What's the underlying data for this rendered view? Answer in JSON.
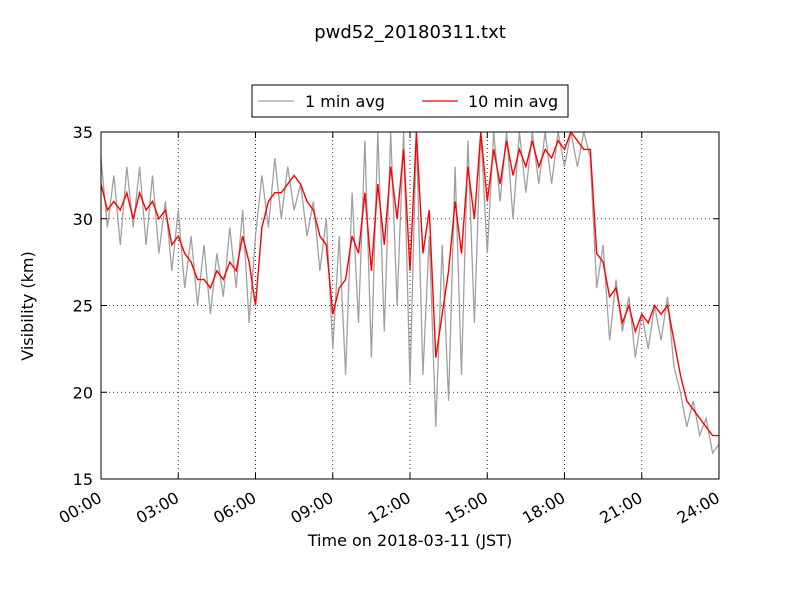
{
  "chart_data": {
    "type": "line",
    "title": "pwd52_20180311.txt",
    "xlabel": "Time on 2018-03-11 (JST)",
    "ylabel": "Visibility (km)",
    "xlim": [
      0,
      24
    ],
    "ylim": [
      15,
      35
    ],
    "x_ticks": [
      0,
      3,
      6,
      9,
      12,
      15,
      18,
      21,
      24
    ],
    "x_tick_labels": [
      "00:00",
      "03:00",
      "06:00",
      "09:00",
      "12:00",
      "15:00",
      "18:00",
      "21:00",
      "24:00"
    ],
    "y_ticks": [
      15,
      20,
      25,
      30,
      35
    ],
    "y_tick_labels": [
      "15",
      "20",
      "25",
      "30",
      "35"
    ],
    "grid": true,
    "legend_position": "top-center",
    "colors": {
      "1 min avg": "#a0a0a0",
      "10 min avg": "#ff0000"
    },
    "series": [
      {
        "name": "1 min avg",
        "note_hours": "x in hours",
        "x": [
          0.0,
          0.25,
          0.5,
          0.75,
          1.0,
          1.25,
          1.5,
          1.75,
          2.0,
          2.25,
          2.5,
          2.75,
          3.0,
          3.25,
          3.5,
          3.75,
          4.0,
          4.25,
          4.5,
          4.75,
          5.0,
          5.25,
          5.5,
          5.75,
          6.0,
          6.25,
          6.5,
          6.75,
          7.0,
          7.25,
          7.5,
          7.75,
          8.0,
          8.25,
          8.5,
          8.75,
          9.0,
          9.25,
          9.5,
          9.75,
          10.0,
          10.25,
          10.5,
          10.75,
          11.0,
          11.25,
          11.5,
          11.75,
          12.0,
          12.25,
          12.5,
          12.75,
          13.0,
          13.25,
          13.5,
          13.75,
          14.0,
          14.25,
          14.5,
          14.75,
          15.0,
          15.25,
          15.5,
          15.75,
          16.0,
          16.25,
          16.5,
          16.75,
          17.0,
          17.25,
          17.5,
          17.75,
          18.0,
          18.25,
          18.5,
          18.75,
          19.0,
          19.25,
          19.5,
          19.75,
          20.0,
          20.25,
          20.5,
          20.75,
          21.0,
          21.25,
          21.5,
          21.75,
          22.0,
          22.25,
          22.5,
          22.75,
          23.0,
          23.25,
          23.5,
          23.75,
          24.0
        ],
        "y": [
          33.5,
          29.5,
          32.5,
          28.5,
          33.0,
          29.5,
          33.0,
          28.5,
          32.5,
          28.0,
          31.0,
          27.0,
          30.5,
          26.0,
          29.0,
          25.0,
          28.5,
          24.5,
          28.0,
          25.5,
          29.5,
          26.0,
          30.5,
          24.0,
          29.0,
          32.5,
          29.5,
          33.5,
          30.0,
          33.0,
          30.5,
          32.0,
          29.0,
          31.0,
          27.0,
          30.0,
          22.5,
          29.0,
          21.0,
          31.5,
          24.0,
          34.5,
          22.0,
          35.0,
          23.5,
          35.0,
          25.0,
          35.0,
          20.5,
          35.0,
          21.0,
          29.0,
          18.0,
          28.5,
          19.5,
          33.0,
          21.0,
          34.5,
          24.0,
          35.0,
          28.0,
          35.0,
          31.0,
          35.0,
          30.0,
          35.0,
          31.5,
          35.0,
          32.0,
          35.0,
          32.0,
          35.0,
          33.0,
          35.0,
          33.0,
          35.0,
          33.5,
          26.0,
          28.5,
          23.0,
          26.5,
          23.5,
          25.5,
          22.0,
          24.5,
          22.5,
          25.0,
          23.0,
          25.5,
          21.5,
          20.0,
          18.0,
          19.5,
          17.5,
          18.5,
          16.5,
          17.0
        ]
      },
      {
        "name": "10 min avg",
        "x": [
          0.0,
          0.25,
          0.5,
          0.75,
          1.0,
          1.25,
          1.5,
          1.75,
          2.0,
          2.25,
          2.5,
          2.75,
          3.0,
          3.25,
          3.5,
          3.75,
          4.0,
          4.25,
          4.5,
          4.75,
          5.0,
          5.25,
          5.5,
          5.75,
          6.0,
          6.25,
          6.5,
          6.75,
          7.0,
          7.25,
          7.5,
          7.75,
          8.0,
          8.25,
          8.5,
          8.75,
          9.0,
          9.25,
          9.5,
          9.75,
          10.0,
          10.25,
          10.5,
          10.75,
          11.0,
          11.25,
          11.5,
          11.75,
          12.0,
          12.25,
          12.5,
          12.75,
          13.0,
          13.25,
          13.5,
          13.75,
          14.0,
          14.25,
          14.5,
          14.75,
          15.0,
          15.25,
          15.5,
          15.75,
          16.0,
          16.25,
          16.5,
          16.75,
          17.0,
          17.25,
          17.5,
          17.75,
          18.0,
          18.25,
          18.5,
          18.75,
          19.0,
          19.25,
          19.5,
          19.75,
          20.0,
          20.25,
          20.5,
          20.75,
          21.0,
          21.25,
          21.5,
          21.75,
          22.0,
          22.25,
          22.5,
          22.75,
          23.0,
          23.25,
          23.5,
          23.75,
          24.0
        ],
        "y": [
          32.0,
          30.5,
          31.0,
          30.5,
          31.5,
          30.0,
          31.5,
          30.5,
          31.0,
          30.0,
          30.5,
          28.5,
          29.0,
          28.0,
          27.5,
          26.5,
          26.5,
          26.0,
          27.0,
          26.5,
          27.5,
          27.0,
          29.0,
          27.5,
          25.0,
          29.5,
          31.0,
          31.5,
          31.5,
          32.0,
          32.5,
          32.0,
          31.0,
          30.5,
          29.0,
          28.5,
          24.5,
          26.0,
          26.5,
          29.0,
          28.0,
          31.5,
          27.0,
          32.0,
          28.5,
          33.0,
          30.0,
          34.0,
          27.0,
          35.0,
          28.0,
          30.5,
          22.0,
          24.5,
          27.0,
          31.0,
          28.0,
          33.0,
          30.0,
          35.0,
          31.0,
          34.0,
          32.0,
          34.5,
          32.5,
          34.0,
          33.0,
          34.5,
          33.0,
          34.0,
          33.5,
          34.5,
          34.0,
          35.0,
          34.5,
          34.0,
          34.0,
          28.0,
          27.5,
          25.5,
          26.0,
          24.0,
          25.0,
          23.5,
          24.5,
          24.0,
          25.0,
          24.5,
          25.0,
          23.0,
          21.0,
          19.5,
          19.0,
          18.5,
          18.0,
          17.5,
          17.5
        ]
      }
    ]
  }
}
